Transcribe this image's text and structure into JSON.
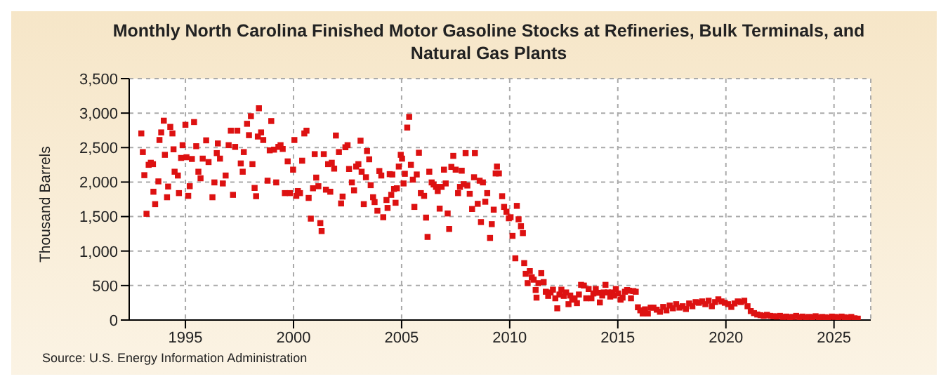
{
  "chart_data": {
    "type": "scatter",
    "title": "Monthly North Carolina Finished Motor Gasoline Stocks at Refineries, Bulk Terminals, and Natural Gas Plants",
    "ylabel": "Thousand Barrels",
    "annotations": [
      "Source: U.S. Energy Information Administration"
    ],
    "xlim": [
      1992.4,
      2026.7
    ],
    "xticks": [
      1995,
      2000,
      2005,
      2010,
      2015,
      2020,
      2025
    ],
    "ylim": [
      0,
      3500
    ],
    "yticks": [
      0,
      500,
      {
        "value": 1000,
        "label": "1,000"
      },
      {
        "value": 1500,
        "label": "1,500"
      },
      {
        "value": 2000,
        "label": "2,000"
      },
      {
        "value": 2500,
        "label": "2,500"
      },
      {
        "value": 3000,
        "label": "3,000"
      },
      {
        "value": 3500,
        "label": "3,500"
      }
    ],
    "grid": true,
    "marker": "square",
    "series": [
      {
        "color": "#dd1111",
        "x": [
          1992.96,
          1993.03,
          1993.1,
          1993.2,
          1993.3,
          1993.4,
          1993.5,
          1993.52,
          1993.6,
          1993.75,
          1993.8,
          1993.88,
          1994.0,
          1994.05,
          1994.15,
          1994.2,
          1994.3,
          1994.4,
          1994.45,
          1994.5,
          1994.65,
          1994.7,
          1994.8,
          1994.87,
          1995.0,
          1995.05,
          1995.13,
          1995.2,
          1995.3,
          1995.4,
          1995.5,
          1995.6,
          1995.7,
          1995.8,
          1995.96,
          1996.07,
          1996.25,
          1996.34,
          1996.45,
          1996.5,
          1996.6,
          1996.73,
          1996.86,
          1997.0,
          1997.1,
          1997.2,
          1997.3,
          1997.4,
          1997.56,
          1997.65,
          1997.7,
          1997.85,
          1997.94,
          1998.03,
          1998.1,
          1998.2,
          1998.27,
          1998.35,
          1998.4,
          1998.5,
          1998.6,
          1998.8,
          1998.9,
          1998.97,
          1999.1,
          1999.2,
          1999.3,
          1999.4,
          1999.5,
          1999.6,
          1999.73,
          1999.83,
          1999.98,
          2000.04,
          2000.13,
          2000.2,
          2000.3,
          2000.4,
          2000.5,
          2000.6,
          2000.7,
          2000.8,
          2000.9,
          2000.98,
          2001.05,
          2001.15,
          2001.24,
          2001.3,
          2001.4,
          2001.5,
          2001.6,
          2001.7,
          2001.77,
          2001.88,
          2001.96,
          2002.1,
          2002.2,
          2002.27,
          2002.4,
          2002.5,
          2002.57,
          2002.7,
          2002.8,
          2002.9,
          2003.0,
          2003.1,
          2003.15,
          2003.25,
          2003.35,
          2003.4,
          2003.5,
          2003.57,
          2003.68,
          2003.75,
          2003.88,
          2003.97,
          2004.06,
          2004.15,
          2004.3,
          2004.35,
          2004.45,
          2004.52,
          2004.57,
          2004.65,
          2004.72,
          2004.78,
          2004.87,
          2004.96,
          2005.02,
          2005.09,
          2005.15,
          2005.26,
          2005.35,
          2005.43,
          2005.52,
          2005.59,
          2005.7,
          2005.8,
          2005.89,
          2006.04,
          2006.13,
          2006.2,
          2006.28,
          2006.39,
          2006.48,
          2006.59,
          2006.67,
          2006.76,
          2006.85,
          2006.96,
          2007.04,
          2007.13,
          2007.2,
          2007.3,
          2007.39,
          2007.5,
          2007.61,
          2007.7,
          2007.78,
          2007.87,
          2007.96,
          2008.04,
          2008.15,
          2008.26,
          2008.35,
          2008.39,
          2008.52,
          2008.61,
          2008.67,
          2008.76,
          2008.87,
          2008.96,
          2009.09,
          2009.17,
          2009.26,
          2009.35,
          2009.41,
          2009.5,
          2009.65,
          2009.74,
          2009.85,
          2009.96,
          2010.04,
          2010.13,
          2010.26,
          2010.33,
          2010.41,
          2010.52,
          2010.61,
          2010.67,
          2010.74,
          2010.83,
          2010.93,
          2011.02,
          2011.11,
          2011.2,
          2011.24,
          2011.33,
          2011.46,
          2011.57,
          2011.67,
          2011.78,
          2011.89,
          2012.0,
          2012.11,
          2012.2,
          2012.3,
          2012.39,
          2012.5,
          2012.61,
          2012.72,
          2012.8,
          2012.89,
          2013.0,
          2013.11,
          2013.2,
          2013.3,
          2013.43,
          2013.54,
          2013.65,
          2013.78,
          2013.87,
          2013.98,
          2014.09,
          2014.17,
          2014.28,
          2014.35,
          2014.43,
          2014.54,
          2014.65,
          2014.74,
          2014.83,
          2014.91,
          2015.02,
          2015.13,
          2015.22,
          2015.33,
          2015.43,
          2015.52,
          2015.61,
          2015.72,
          2015.83,
          2015.93,
          2016.04,
          2016.15,
          2016.26,
          2016.39,
          2016.52,
          2016.65,
          2016.8,
          2016.95,
          2017.1,
          2017.25,
          2017.4,
          2017.55,
          2017.7,
          2017.85,
          2018.0,
          2018.15,
          2018.3,
          2018.45,
          2018.6,
          2018.75,
          2018.9,
          2019.05,
          2019.2,
          2019.35,
          2019.5,
          2019.65,
          2019.8,
          2019.95,
          2020.1,
          2020.25,
          2020.4,
          2020.55,
          2020.7,
          2020.85,
          2021.0,
          2021.15,
          2021.3,
          2021.45,
          2021.6,
          2021.75,
          2021.9,
          2022.05,
          2022.2,
          2022.35,
          2022.5,
          2022.65,
          2022.8,
          2022.95,
          2023.1,
          2023.25,
          2023.4,
          2023.55,
          2023.7,
          2023.85,
          2024.0,
          2024.15,
          2024.3,
          2024.45,
          2024.6,
          2024.75,
          2024.9,
          2025.05,
          2025.2,
          2025.35,
          2025.5,
          2025.65,
          2025.8,
          2025.95,
          2026.1
        ],
        "values": [
          2705,
          2435,
          2100,
          1540,
          2250,
          2280,
          2260,
          1860,
          1680,
          2010,
          2610,
          2720,
          2890,
          2395,
          1780,
          1935,
          2800,
          2705,
          2475,
          2150,
          2095,
          1840,
          2350,
          2535,
          2830,
          2360,
          1800,
          1940,
          2335,
          2870,
          2520,
          2150,
          2055,
          2340,
          2605,
          2290,
          1780,
          1995,
          2420,
          2560,
          2340,
          1980,
          2095,
          2535,
          2745,
          1815,
          2510,
          2745,
          2270,
          2150,
          2435,
          2845,
          2680,
          2955,
          2260,
          1915,
          1795,
          2660,
          3070,
          2720,
          2610,
          2020,
          2460,
          2885,
          2470,
          1995,
          2510,
          2535,
          2480,
          1840,
          2300,
          1840,
          2180,
          2610,
          1800,
          1870,
          1840,
          2310,
          2705,
          2745,
          1770,
          1470,
          1910,
          2405,
          2065,
          1940,
          1405,
          1290,
          2405,
          1890,
          2260,
          1860,
          2280,
          2195,
          2675,
          2435,
          1690,
          1790,
          2505,
          2535,
          2190,
          1995,
          1880,
          2225,
          2260,
          2600,
          2150,
          1680,
          2070,
          2450,
          2330,
          1955,
          1780,
          1710,
          1585,
          2160,
          2095,
          1490,
          1740,
          1625,
          2115,
          1815,
          2110,
          1900,
          1700,
          1910,
          2225,
          2395,
          2340,
          1980,
          2120,
          2790,
          2945,
          2250,
          2035,
          1640,
          2110,
          2425,
          1840,
          1800,
          1485,
          1205,
          2150,
          1995,
          1965,
          1930,
          1870,
          1615,
          1930,
          2180,
          1980,
          1545,
          1320,
          2220,
          2380,
          2180,
          1840,
          1930,
          2165,
          1970,
          2420,
          1950,
          1830,
          1610,
          2070,
          2420,
          1685,
          2020,
          1420,
          1995,
          1715,
          1840,
          1190,
          1390,
          1600,
          2125,
          2225,
          2125,
          1795,
          1640,
          1570,
          1475,
          1490,
          1220,
          895,
          1655,
          1460,
          1360,
          1260,
          825,
          670,
          535,
          710,
          620,
          585,
          435,
          325,
          535,
          680,
          550,
          410,
          350,
          400,
          440,
          315,
          170,
          370,
          440,
          350,
          400,
          230,
          355,
          295,
          315,
          245,
          370,
          510,
          500,
          315,
          450,
          315,
          385,
          450,
          395,
          255,
          355,
          400,
          510,
          400,
          340,
          400,
          355,
          450,
          385,
          295,
          325,
          410,
          435,
          425,
          315,
          420,
          410,
          185,
          140,
          95,
          155,
          95,
          180,
          180,
          150,
          120,
          190,
          140,
          210,
          170,
          230,
          180,
          200,
          160,
          240,
          200,
          260,
          250,
          270,
          230,
          280,
          200,
          260,
          300,
          270,
          250,
          230,
          190,
          240,
          270,
          260,
          280,
          200,
          130,
          100,
          80,
          70,
          60,
          75,
          60,
          55,
          50,
          60,
          45,
          50,
          40,
          45,
          60,
          40,
          50,
          35,
          45,
          40,
          55,
          35,
          45,
          40,
          30,
          50,
          45,
          35,
          50,
          40,
          30,
          45,
          25,
          20
        ]
      }
    ]
  }
}
